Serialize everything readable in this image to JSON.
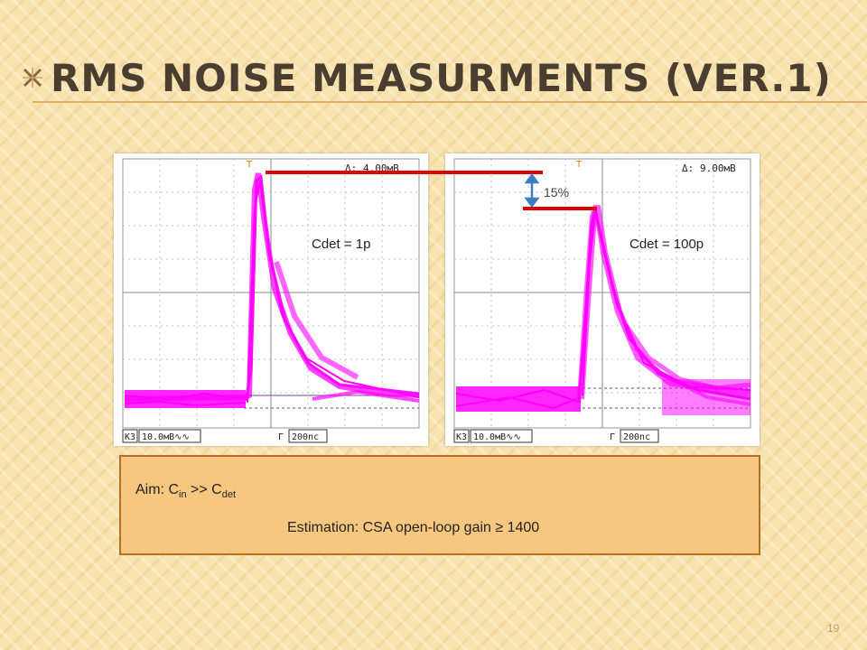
{
  "slide": {
    "title": "RMS NOISE MEASURMENTS (VER.1)",
    "page_number": "19"
  },
  "scope_left": {
    "delta_prefix": "Δ:",
    "delta_value": "4.00мВ",
    "channel_marker": "3",
    "trigger_marker": "T",
    "channel_box": "K3",
    "vscale": "10.0мВ∿∿",
    "timebase_prefix": "Γ",
    "timebase": "200nc",
    "cdet_label": "Cdet = 1p"
  },
  "scope_right": {
    "delta_prefix": "Δ:",
    "delta_value": "9.00мВ",
    "channel_marker": "3",
    "trigger_marker": "T",
    "channel_box": "K3",
    "vscale": "10.0мВ∿∿",
    "timebase_prefix": "Γ",
    "timebase": "200nc",
    "cdet_label": "Cdet = 100p"
  },
  "annotation": {
    "percent": "15%"
  },
  "infobox": {
    "aim_prefix": "Aim:  C",
    "aim_sub1": "in",
    "aim_middle": " >> C",
    "aim_sub2": "det",
    "estimation": "Estimation: CSA open-loop gain ≥ 1400"
  },
  "colors": {
    "trace": "#ff00ff",
    "marker_line": "#e00000",
    "arrow": "#3a7fc1",
    "box_fill": "#f8c77f",
    "box_border": "#b76f22"
  }
}
